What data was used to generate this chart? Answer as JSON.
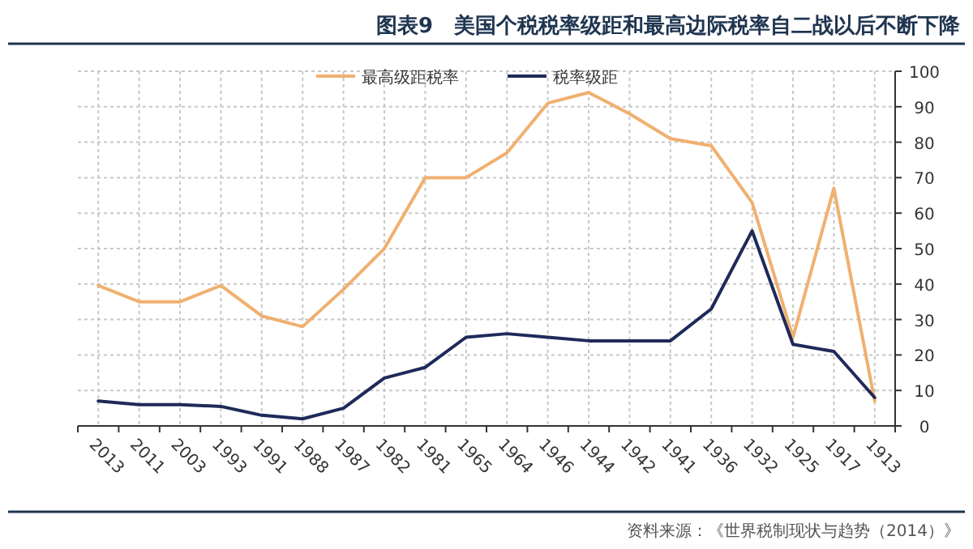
{
  "chart_data": {
    "type": "line",
    "title": "图表9　美国个税税率级距和最高边际税率自二战以后不断下降",
    "categories": [
      "2013",
      "2011",
      "2003",
      "1993",
      "1991",
      "1988",
      "1987",
      "1982",
      "1981",
      "1965",
      "1964",
      "1946",
      "1944",
      "1942",
      "1941",
      "1936",
      "1932",
      "1925",
      "1917",
      "1913"
    ],
    "series": [
      {
        "name": "最高级距税率",
        "color": "#f0b070",
        "values": [
          39.6,
          35,
          35,
          39.6,
          31,
          28,
          38.5,
          50,
          70,
          70,
          77,
          91,
          94,
          88,
          81,
          79,
          63,
          25,
          67,
          7
        ]
      },
      {
        "name": "税率级距",
        "color": "#1f2a5a",
        "values": [
          7,
          6,
          6,
          5.5,
          3,
          2,
          5,
          13.5,
          16.5,
          25,
          26,
          25,
          24,
          24,
          24,
          33,
          55,
          23,
          21,
          8
        ]
      }
    ],
    "ylim": [
      0,
      100
    ],
    "yticks": [
      0,
      10,
      20,
      30,
      40,
      50,
      60,
      70,
      80,
      90,
      100
    ],
    "grid": true,
    "legend": "top",
    "marker": "none",
    "line_style": "solid",
    "annotations": [
      "资料来源：《世界税制现状与趋势（2014）》"
    ]
  }
}
